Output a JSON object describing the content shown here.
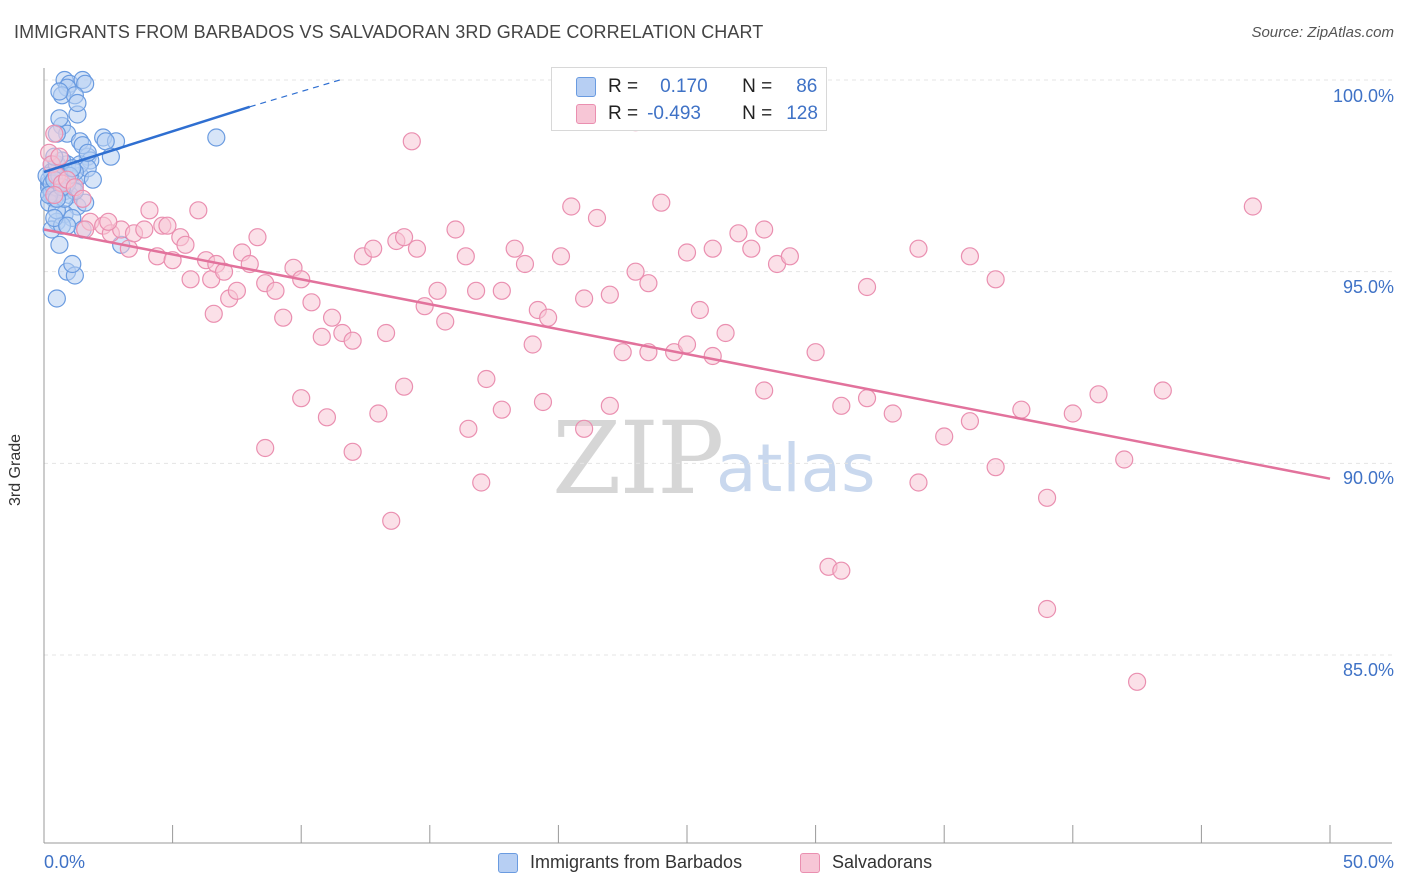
{
  "header": {
    "title": "IMMIGRANTS FROM BARBADOS VS SALVADORAN 3RD GRADE CORRELATION CHART",
    "source": "Source: ZipAtlas.com"
  },
  "legend": {
    "series1": {
      "r_label": "R =",
      "r_value": "0.170",
      "n_label": "N =",
      "n_value": "86",
      "name": "Immigrants from Barbados"
    },
    "series2": {
      "r_label": "R =",
      "r_value": "-0.493",
      "n_label": "N =",
      "n_value": "128",
      "name": "Salvadorans"
    }
  },
  "watermark": {
    "zip": "ZIP",
    "atlas": "atlas"
  },
  "colors": {
    "blue": "#6a9be0",
    "blue_fill": "#b7cff3",
    "blue_line": "#2f6fd1",
    "pink": "#ea8fb0",
    "pink_fill": "#f7c6d6",
    "pink_line": "#e2729c",
    "tick": "#3f72c6"
  },
  "chart_data": {
    "type": "scatter",
    "title": "IMMIGRANTS FROM BARBADOS VS SALVADORAN 3RD GRADE CORRELATION CHART",
    "xlabel": "",
    "ylabel": "3rd Grade",
    "xlim": [
      0,
      50
    ],
    "ylim": [
      80.5,
      100.8
    ],
    "x_ticks": [
      "0.0%",
      "50.0%"
    ],
    "y_ticks": [
      {
        "value": 100,
        "label": "100.0%"
      },
      {
        "value": 95,
        "label": "95.0%"
      },
      {
        "value": 90,
        "label": "90.0%"
      },
      {
        "value": 85,
        "label": "85.0%"
      }
    ],
    "series": [
      {
        "name": "Immigrants from Barbados",
        "trend": {
          "x0": 0,
          "y0": 97.6,
          "x1": 8.0,
          "y1": 99.3,
          "dash_to_x": 11.5,
          "dash_to_y": 100.0
        },
        "points": [
          [
            0.2,
            97.3
          ],
          [
            0.3,
            97.0
          ],
          [
            0.4,
            97.5
          ],
          [
            0.5,
            97.2
          ],
          [
            0.3,
            97.8
          ],
          [
            0.6,
            97.4
          ],
          [
            0.8,
            97.1
          ],
          [
            0.4,
            97.6
          ],
          [
            0.2,
            97.2
          ],
          [
            0.5,
            97.3
          ],
          [
            0.9,
            97.4
          ],
          [
            1.1,
            97.2
          ],
          [
            0.7,
            97.6
          ],
          [
            1.2,
            97.3
          ],
          [
            0.3,
            97.1
          ],
          [
            0.6,
            97.7
          ],
          [
            0.9,
            97.8
          ],
          [
            1.4,
            97.5
          ],
          [
            1.0,
            97.0
          ],
          [
            0.4,
            96.9
          ],
          [
            1.3,
            96.7
          ],
          [
            0.8,
            96.5
          ],
          [
            0.5,
            96.3
          ],
          [
            1.1,
            96.4
          ],
          [
            0.3,
            96.1
          ],
          [
            0.7,
            96.2
          ],
          [
            1.5,
            96.1
          ],
          [
            0.6,
            95.7
          ],
          [
            3.0,
            95.7
          ],
          [
            0.9,
            95.0
          ],
          [
            1.2,
            94.9
          ],
          [
            1.1,
            95.2
          ],
          [
            0.5,
            94.3
          ],
          [
            0.8,
            100.0
          ],
          [
            1.0,
            99.9
          ],
          [
            1.5,
            100.0
          ],
          [
            0.9,
            99.8
          ],
          [
            0.7,
            99.6
          ],
          [
            1.6,
            99.9
          ],
          [
            1.2,
            99.6
          ],
          [
            0.6,
            99.7
          ],
          [
            1.3,
            99.1
          ],
          [
            0.7,
            98.8
          ],
          [
            0.9,
            98.6
          ],
          [
            0.5,
            98.6
          ],
          [
            1.4,
            98.4
          ],
          [
            2.3,
            98.5
          ],
          [
            2.8,
            98.4
          ],
          [
            2.4,
            98.4
          ],
          [
            6.7,
            98.5
          ],
          [
            1.7,
            98.0
          ],
          [
            2.6,
            98.0
          ],
          [
            1.8,
            97.9
          ],
          [
            1.4,
            97.8
          ],
          [
            1.7,
            97.7
          ],
          [
            1.2,
            97.6
          ],
          [
            1.9,
            97.4
          ],
          [
            0.2,
            97.4
          ],
          [
            0.4,
            97.2
          ],
          [
            0.6,
            97.3
          ],
          [
            0.8,
            97.2
          ],
          [
            0.3,
            97.6
          ],
          [
            0.1,
            97.5
          ],
          [
            0.5,
            97.8
          ],
          [
            0.9,
            97.3
          ],
          [
            1.0,
            97.5
          ],
          [
            0.7,
            97.9
          ],
          [
            0.4,
            98.0
          ],
          [
            0.2,
            96.8
          ],
          [
            1.6,
            96.8
          ],
          [
            0.5,
            96.6
          ],
          [
            1.2,
            97.1
          ],
          [
            0.8,
            96.9
          ],
          [
            0.3,
            97.3
          ],
          [
            0.6,
            97.5
          ],
          [
            0.2,
            97.0
          ],
          [
            0.4,
            96.4
          ],
          [
            1.1,
            97.7
          ],
          [
            0.9,
            96.2
          ],
          [
            0.6,
            99.0
          ],
          [
            1.3,
            99.4
          ],
          [
            1.5,
            98.3
          ],
          [
            1.7,
            98.1
          ],
          [
            0.4,
            97.4
          ],
          [
            0.7,
            97.2
          ],
          [
            0.5,
            96.9
          ]
        ]
      },
      {
        "name": "Salvadorans",
        "trend": {
          "x0": 0,
          "y0": 96.1,
          "x1": 50.0,
          "y1": 89.6
        },
        "points": [
          [
            0.2,
            98.1
          ],
          [
            0.3,
            97.8
          ],
          [
            0.5,
            97.5
          ],
          [
            0.7,
            97.3
          ],
          [
            0.4,
            97.0
          ],
          [
            0.6,
            98.0
          ],
          [
            0.9,
            97.4
          ],
          [
            1.2,
            97.2
          ],
          [
            0.4,
            98.6
          ],
          [
            1.5,
            96.9
          ],
          [
            1.8,
            96.3
          ],
          [
            2.3,
            96.2
          ],
          [
            2.6,
            96.0
          ],
          [
            3.0,
            96.1
          ],
          [
            3.3,
            95.6
          ],
          [
            3.5,
            96.0
          ],
          [
            3.9,
            96.1
          ],
          [
            4.1,
            96.6
          ],
          [
            4.4,
            95.4
          ],
          [
            4.6,
            96.2
          ],
          [
            4.8,
            96.2
          ],
          [
            5.0,
            95.3
          ],
          [
            5.3,
            95.9
          ],
          [
            5.5,
            95.7
          ],
          [
            5.7,
            94.8
          ],
          [
            6.0,
            96.6
          ],
          [
            6.3,
            95.3
          ],
          [
            6.5,
            94.8
          ],
          [
            6.7,
            95.2
          ],
          [
            7.0,
            95.0
          ],
          [
            7.2,
            94.3
          ],
          [
            7.5,
            94.5
          ],
          [
            7.7,
            95.5
          ],
          [
            8.0,
            95.2
          ],
          [
            8.3,
            95.9
          ],
          [
            8.6,
            94.7
          ],
          [
            9.0,
            94.5
          ],
          [
            9.3,
            93.8
          ],
          [
            9.7,
            95.1
          ],
          [
            10.0,
            94.8
          ],
          [
            10.4,
            94.2
          ],
          [
            10.8,
            93.3
          ],
          [
            11.2,
            93.8
          ],
          [
            11.6,
            93.4
          ],
          [
            12.0,
            93.2
          ],
          [
            12.4,
            95.4
          ],
          [
            12.8,
            95.6
          ],
          [
            13.3,
            93.4
          ],
          [
            13.7,
            95.8
          ],
          [
            14.0,
            95.9
          ],
          [
            14.5,
            95.6
          ],
          [
            14.8,
            94.1
          ],
          [
            15.3,
            94.5
          ],
          [
            15.6,
            93.7
          ],
          [
            16.0,
            96.1
          ],
          [
            16.4,
            95.4
          ],
          [
            16.8,
            94.5
          ],
          [
            17.2,
            92.2
          ],
          [
            17.8,
            94.5
          ],
          [
            18.3,
            95.6
          ],
          [
            18.7,
            95.2
          ],
          [
            19.2,
            94.0
          ],
          [
            19.6,
            93.8
          ],
          [
            20.1,
            95.4
          ],
          [
            20.5,
            96.7
          ],
          [
            21.0,
            94.3
          ],
          [
            21.5,
            96.4
          ],
          [
            22.0,
            94.4
          ],
          [
            22.5,
            92.9
          ],
          [
            23.0,
            95.0
          ],
          [
            23.5,
            94.7
          ],
          [
            24.0,
            96.8
          ],
          [
            24.5,
            92.9
          ],
          [
            25.0,
            95.5
          ],
          [
            25.5,
            94.0
          ],
          [
            26.0,
            95.6
          ],
          [
            26.5,
            93.4
          ],
          [
            27.0,
            96.0
          ],
          [
            27.5,
            95.6
          ],
          [
            28.0,
            96.1
          ],
          [
            28.5,
            95.2
          ],
          [
            29.0,
            95.4
          ],
          [
            8.6,
            90.4
          ],
          [
            10.0,
            91.7
          ],
          [
            11.0,
            91.2
          ],
          [
            12.0,
            90.3
          ],
          [
            13.0,
            91.3
          ],
          [
            13.5,
            88.5
          ],
          [
            14.0,
            92.0
          ],
          [
            16.5,
            90.9
          ],
          [
            17.0,
            89.5
          ],
          [
            17.8,
            91.4
          ],
          [
            19.0,
            93.1
          ],
          [
            19.4,
            91.6
          ],
          [
            21.0,
            90.9
          ],
          [
            22.0,
            91.5
          ],
          [
            23.5,
            92.9
          ],
          [
            25.0,
            93.1
          ],
          [
            26.0,
            92.8
          ],
          [
            28.0,
            91.9
          ],
          [
            30.0,
            92.9
          ],
          [
            31.0,
            91.5
          ],
          [
            32.0,
            91.7
          ],
          [
            33.0,
            91.3
          ],
          [
            34.0,
            89.5
          ],
          [
            35.0,
            90.7
          ],
          [
            36.0,
            91.1
          ],
          [
            37.0,
            89.9
          ],
          [
            38.0,
            91.4
          ],
          [
            39.0,
            89.1
          ],
          [
            40.0,
            91.3
          ],
          [
            41.0,
            91.8
          ],
          [
            42.0,
            90.1
          ],
          [
            30.5,
            87.3
          ],
          [
            31.0,
            87.2
          ],
          [
            34.0,
            95.6
          ],
          [
            36.0,
            95.4
          ],
          [
            37.0,
            94.8
          ],
          [
            39.0,
            86.2
          ],
          [
            42.5,
            84.3
          ],
          [
            43.5,
            91.9
          ],
          [
            47.0,
            96.7
          ],
          [
            14.3,
            98.4
          ],
          [
            23.0,
            98.9
          ],
          [
            32.0,
            94.6
          ],
          [
            2.5,
            96.3
          ],
          [
            1.6,
            96.1
          ],
          [
            6.6,
            93.9
          ]
        ]
      }
    ]
  }
}
